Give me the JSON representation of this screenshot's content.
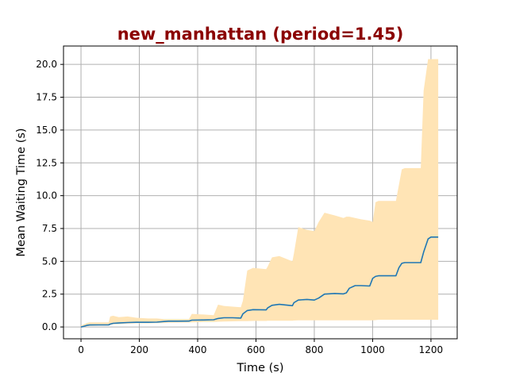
{
  "chart_data": {
    "type": "line",
    "title": "new_manhattan (period=1.45)",
    "title_color": "#8b0000",
    "xlabel": "Time (s)",
    "ylabel": "Mean Waiting Time (s)",
    "xlim": [
      -60,
      1290
    ],
    "ylim": [
      -0.9,
      21.4
    ],
    "xticks": [
      0,
      200,
      400,
      600,
      800,
      1000,
      1200
    ],
    "yticks": [
      0.0,
      2.5,
      5.0,
      7.5,
      10.0,
      12.5,
      15.0,
      17.5,
      20.0
    ],
    "xtick_labels": [
      "0",
      "200",
      "400",
      "600",
      "800",
      "1000",
      "1200"
    ],
    "ytick_labels": [
      "0.0",
      "2.5",
      "5.0",
      "7.5",
      "10.0",
      "12.5",
      "15.0",
      "17.5",
      "20.0"
    ],
    "grid": true,
    "line_color": "#1f77b4",
    "band_color": "#ffe4b5",
    "series": [
      {
        "x": [
          0,
          10,
          20,
          30,
          60,
          95,
          100,
          110,
          130,
          160,
          190,
          230,
          260,
          285,
          300,
          330,
          370,
          380,
          420,
          455,
          470,
          490,
          520,
          548,
          555,
          570,
          590,
          635,
          640,
          655,
          680,
          725,
          730,
          745,
          775,
          800,
          815,
          835,
          870,
          900,
          910,
          920,
          940,
          960,
          990,
          1000,
          1010,
          1020,
          1080,
          1090,
          1100,
          1110,
          1165,
          1175,
          1190,
          1200,
          1225
        ],
        "y": [
          0.0,
          0.05,
          0.12,
          0.15,
          0.16,
          0.16,
          0.22,
          0.28,
          0.3,
          0.34,
          0.36,
          0.36,
          0.37,
          0.42,
          0.44,
          0.44,
          0.45,
          0.52,
          0.53,
          0.55,
          0.65,
          0.7,
          0.7,
          0.68,
          1.0,
          1.25,
          1.32,
          1.3,
          1.45,
          1.65,
          1.72,
          1.62,
          1.85,
          2.05,
          2.1,
          2.05,
          2.2,
          2.5,
          2.55,
          2.52,
          2.6,
          2.95,
          3.15,
          3.15,
          3.12,
          3.7,
          3.85,
          3.9,
          3.9,
          4.5,
          4.85,
          4.9,
          4.9,
          5.7,
          6.7,
          6.85,
          6.85
        ],
        "lower": [
          0.0,
          0.0,
          0.05,
          0.08,
          0.1,
          0.1,
          0.15,
          0.2,
          0.22,
          0.25,
          0.28,
          0.28,
          0.29,
          0.3,
          0.32,
          0.33,
          0.34,
          0.36,
          0.38,
          0.38,
          0.4,
          0.42,
          0.43,
          0.44,
          0.45,
          0.45,
          0.46,
          0.46,
          0.47,
          0.47,
          0.48,
          0.48,
          0.49,
          0.5,
          0.5,
          0.5,
          0.5,
          0.5,
          0.5,
          0.5,
          0.5,
          0.5,
          0.5,
          0.5,
          0.5,
          0.5,
          0.52,
          0.55,
          0.55,
          0.55,
          0.55,
          0.55,
          0.55,
          0.55,
          0.55,
          0.55,
          0.55
        ],
        "upper": [
          0.1,
          0.2,
          0.3,
          0.35,
          0.35,
          0.35,
          0.8,
          0.85,
          0.75,
          0.8,
          0.7,
          0.65,
          0.65,
          0.6,
          0.6,
          0.6,
          0.6,
          1.0,
          0.95,
          0.9,
          1.7,
          1.6,
          1.55,
          1.5,
          2.0,
          4.3,
          4.5,
          4.4,
          4.6,
          5.3,
          5.4,
          5.0,
          5.6,
          7.6,
          7.4,
          7.3,
          8.0,
          8.7,
          8.5,
          8.3,
          8.4,
          8.4,
          8.3,
          8.2,
          8.1,
          8.0,
          9.5,
          9.6,
          9.6,
          10.8,
          12.0,
          12.1,
          12.1,
          18.0,
          20.4,
          20.4,
          20.4
        ]
      }
    ]
  }
}
